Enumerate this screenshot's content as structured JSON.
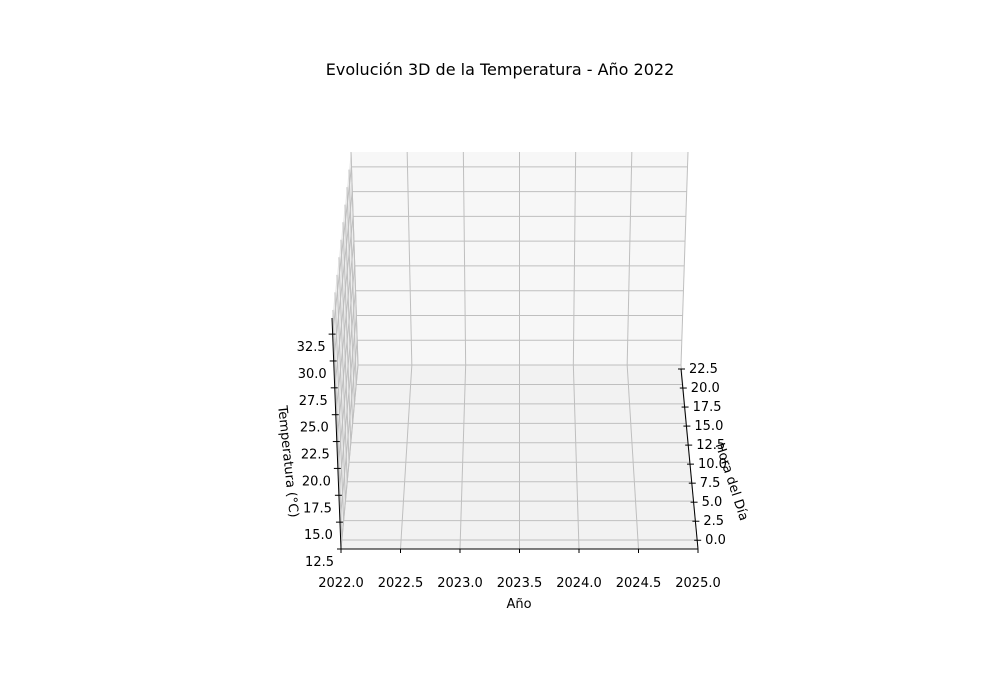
{
  "chart_data": {
    "type": "surface3d",
    "title": "Evolución 3D de la Temperatura - Año 2022",
    "xlabel": "Año",
    "ylabel": "Hora del Día",
    "zlabel": "Temperatura (°C)",
    "xlim": [
      2022.0,
      2025.0
    ],
    "ylim": [
      -1.15,
      22.5
    ],
    "zlim": [
      12.5,
      34.0
    ],
    "x_ticks": [
      "2022.0",
      "2022.5",
      "2023.0",
      "2023.5",
      "2024.0",
      "2024.5",
      "2025.0"
    ],
    "y_ticks": [
      "0.0",
      "2.5",
      "5.0",
      "7.5",
      "10.0",
      "12.5",
      "15.0",
      "17.5",
      "20.0",
      "22.5"
    ],
    "z_ticks": [
      "12.5",
      "15.0",
      "17.5",
      "20.0",
      "22.5",
      "25.0",
      "27.5",
      "30.0",
      "32.5"
    ],
    "series": [],
    "grid": true
  }
}
